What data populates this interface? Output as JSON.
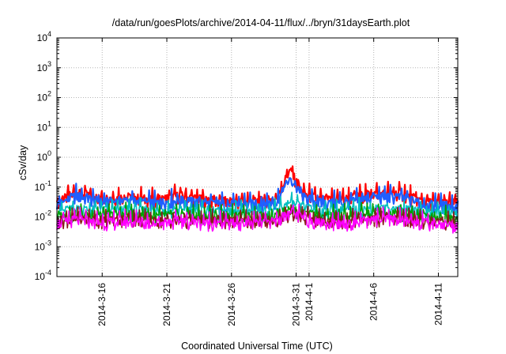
{
  "chart_data": {
    "type": "line",
    "title": "/data/run/goesPlots/archive/2014-04-11/flux/../bryn/31daysEarth.plot",
    "xlabel": "Coordinated Universal Time (UTC)",
    "ylabel": "cSv/day",
    "yscale": "log",
    "ylim": [
      0.0001,
      10000
    ],
    "xlim": [
      "2014-03-12T12:00",
      "2014-04-12T12:00"
    ],
    "grid": true,
    "y_ticks": [
      {
        "base": "10",
        "exp": "-4"
      },
      {
        "base": "10",
        "exp": "-3"
      },
      {
        "base": "10",
        "exp": "-2"
      },
      {
        "base": "10",
        "exp": "-1"
      },
      {
        "base": "10",
        "exp": "0"
      },
      {
        "base": "10",
        "exp": "1"
      },
      {
        "base": "10",
        "exp": "2"
      },
      {
        "base": "10",
        "exp": "3"
      },
      {
        "base": "10",
        "exp": "4"
      }
    ],
    "x_ticks": [
      {
        "label": "2014-3-16",
        "date": "2014-03-16"
      },
      {
        "label": "2014-3-21",
        "date": "2014-03-21"
      },
      {
        "label": "2014-3-26",
        "date": "2014-03-26"
      },
      {
        "label": "2014-3-31",
        "date": "2014-03-31"
      },
      {
        "label": "2014-4-1",
        "date": "2014-04-01"
      },
      {
        "label": "2014-4-6",
        "date": "2014-04-06"
      },
      {
        "label": "2014-4-11",
        "date": "2014-04-11"
      }
    ],
    "series": [
      {
        "color": "#ff0000",
        "peak": 0.38,
        "peak_date": "2014-03-30T12:00",
        "values": [
          [
            "2014-03-12T12:00",
            0.03
          ],
          [
            "2014-03-14T00:00",
            0.065
          ],
          [
            "2014-03-16T00:00",
            0.04
          ],
          [
            "2014-03-18T00:00",
            0.045
          ],
          [
            "2014-03-20T00:00",
            0.035
          ],
          [
            "2014-03-22T00:00",
            0.05
          ],
          [
            "2014-03-24T00:00",
            0.035
          ],
          [
            "2014-03-26T00:00",
            0.03
          ],
          [
            "2014-03-28T00:00",
            0.032
          ],
          [
            "2014-03-29T12:00",
            0.04
          ],
          [
            "2014-03-30T12:00",
            0.38
          ],
          [
            "2014-03-31T12:00",
            0.06
          ],
          [
            "2014-04-02T00:00",
            0.035
          ],
          [
            "2014-04-04T00:00",
            0.04
          ],
          [
            "2014-04-06T00:00",
            0.06
          ],
          [
            "2014-04-08T00:00",
            0.06
          ],
          [
            "2014-04-10T00:00",
            0.03
          ],
          [
            "2014-04-12T12:00",
            0.028
          ]
        ]
      },
      {
        "color": "#1f5fff",
        "peak": 0.2,
        "peak_date": "2014-03-30T12:00",
        "values": [
          [
            "2014-03-12T12:00",
            0.025
          ],
          [
            "2014-03-14T00:00",
            0.05
          ],
          [
            "2014-03-16T00:00",
            0.03
          ],
          [
            "2014-03-18T00:00",
            0.035
          ],
          [
            "2014-03-20T00:00",
            0.028
          ],
          [
            "2014-03-22T00:00",
            0.035
          ],
          [
            "2014-03-24T00:00",
            0.028
          ],
          [
            "2014-03-26T00:00",
            0.025
          ],
          [
            "2014-03-28T00:00",
            0.026
          ],
          [
            "2014-03-29T12:00",
            0.03
          ],
          [
            "2014-03-30T12:00",
            0.2
          ],
          [
            "2014-03-31T12:00",
            0.045
          ],
          [
            "2014-04-02T00:00",
            0.028
          ],
          [
            "2014-04-04T00:00",
            0.03
          ],
          [
            "2014-04-06T00:00",
            0.045
          ],
          [
            "2014-04-08T00:00",
            0.045
          ],
          [
            "2014-04-10T00:00",
            0.025
          ],
          [
            "2014-04-12T12:00",
            0.022
          ]
        ]
      },
      {
        "color": "#00bfbf",
        "peak": 0.03,
        "peak_date": "2014-03-30T12:00",
        "values": [
          [
            "2014-03-12T12:00",
            0.015
          ],
          [
            "2014-03-14T00:00",
            0.018
          ],
          [
            "2014-03-16T00:00",
            0.016
          ],
          [
            "2014-03-18T00:00",
            0.017
          ],
          [
            "2014-03-20T00:00",
            0.015
          ],
          [
            "2014-03-22T00:00",
            0.016
          ],
          [
            "2014-03-24T00:00",
            0.015
          ],
          [
            "2014-03-26T00:00",
            0.014
          ],
          [
            "2014-03-28T00:00",
            0.015
          ],
          [
            "2014-03-29T12:00",
            0.016
          ],
          [
            "2014-03-30T12:00",
            0.03
          ],
          [
            "2014-03-31T12:00",
            0.02
          ],
          [
            "2014-04-02T00:00",
            0.015
          ],
          [
            "2014-04-04T00:00",
            0.016
          ],
          [
            "2014-04-06T00:00",
            0.018
          ],
          [
            "2014-04-08T00:00",
            0.018
          ],
          [
            "2014-04-10T00:00",
            0.014
          ],
          [
            "2014-04-12T12:00",
            0.013
          ]
        ]
      },
      {
        "color": "#00a000",
        "peak": 0.018,
        "peak_date": "2014-03-30T12:00",
        "values": [
          [
            "2014-03-12T12:00",
            0.01
          ],
          [
            "2014-03-14T00:00",
            0.012
          ],
          [
            "2014-03-16T00:00",
            0.011
          ],
          [
            "2014-03-18T00:00",
            0.012
          ],
          [
            "2014-03-20T00:00",
            0.01
          ],
          [
            "2014-03-22T00:00",
            0.011
          ],
          [
            "2014-03-24T00:00",
            0.01
          ],
          [
            "2014-03-26T00:00",
            0.01
          ],
          [
            "2014-03-28T00:00",
            0.01
          ],
          [
            "2014-03-29T12:00",
            0.011
          ],
          [
            "2014-03-30T12:00",
            0.018
          ],
          [
            "2014-03-31T12:00",
            0.013
          ],
          [
            "2014-04-02T00:00",
            0.01
          ],
          [
            "2014-04-04T00:00",
            0.011
          ],
          [
            "2014-04-06T00:00",
            0.012
          ],
          [
            "2014-04-08T00:00",
            0.012
          ],
          [
            "2014-04-10T00:00",
            0.01
          ],
          [
            "2014-04-12T12:00",
            0.009
          ]
        ]
      },
      {
        "color": "#8b1a1a",
        "peak": 0.012,
        "peak_date": "2014-03-30T12:00",
        "values": [
          [
            "2014-03-12T12:00",
            0.007
          ],
          [
            "2014-03-14T00:00",
            0.008
          ],
          [
            "2014-03-16T00:00",
            0.007
          ],
          [
            "2014-03-18T00:00",
            0.008
          ],
          [
            "2014-03-20T00:00",
            0.007
          ],
          [
            "2014-03-22T00:00",
            0.007
          ],
          [
            "2014-03-24T00:00",
            0.007
          ],
          [
            "2014-03-26T00:00",
            0.007
          ],
          [
            "2014-03-28T00:00",
            0.007
          ],
          [
            "2014-03-29T12:00",
            0.007
          ],
          [
            "2014-03-30T12:00",
            0.012
          ],
          [
            "2014-03-31T12:00",
            0.009
          ],
          [
            "2014-04-02T00:00",
            0.007
          ],
          [
            "2014-04-04T00:00",
            0.007
          ],
          [
            "2014-04-06T00:00",
            0.008
          ],
          [
            "2014-04-08T00:00",
            0.008
          ],
          [
            "2014-04-10T00:00",
            0.007
          ],
          [
            "2014-04-12T12:00",
            0.006
          ]
        ]
      },
      {
        "color": "#ff00ff",
        "peak": 0.015,
        "peak_date": "2014-03-30T12:00",
        "values": [
          [
            "2014-03-12T12:00",
            0.006
          ],
          [
            "2014-03-14T00:00",
            0.008
          ],
          [
            "2014-03-16T00:00",
            0.006
          ],
          [
            "2014-03-18T00:00",
            0.007
          ],
          [
            "2014-03-20T00:00",
            0.006
          ],
          [
            "2014-03-22T00:00",
            0.007
          ],
          [
            "2014-03-24T00:00",
            0.006
          ],
          [
            "2014-03-26T00:00",
            0.006
          ],
          [
            "2014-03-28T00:00",
            0.006
          ],
          [
            "2014-03-29T12:00",
            0.007
          ],
          [
            "2014-03-30T12:00",
            0.015
          ],
          [
            "2014-03-31T12:00",
            0.009
          ],
          [
            "2014-04-02T00:00",
            0.006
          ],
          [
            "2014-04-04T00:00",
            0.006
          ],
          [
            "2014-04-06T00:00",
            0.008
          ],
          [
            "2014-04-08T00:00",
            0.008
          ],
          [
            "2014-04-10T00:00",
            0.006
          ],
          [
            "2014-04-12T12:00",
            0.005
          ]
        ]
      }
    ]
  }
}
